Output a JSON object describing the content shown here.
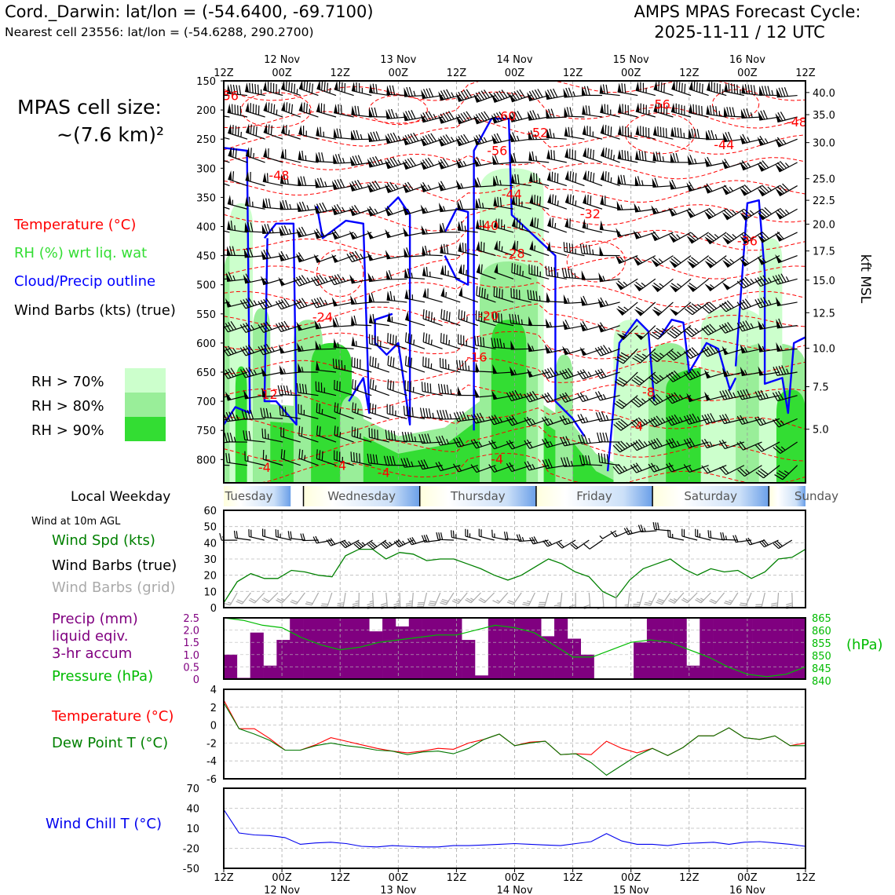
{
  "header": {
    "title_left": "Cord._Darwin: lat/lon = (-54.6400, -69.7100)",
    "subtitle_left": "Nearest cell 23556: lat/lon = (-54.6288, 290.2700)",
    "title_right_1": "AMPS MPAS Forecast Cycle:",
    "title_right_2": "2025-11-11 / 12 UTC"
  },
  "cell_size": {
    "line1": "MPAS cell size:",
    "line2": "~(7.6 km)²"
  },
  "legend": {
    "temperature": "Temperature (°C)",
    "rh": "RH (%) wrt liq. wat",
    "cloud": "Cloud/Precip outline",
    "wind": "Wind Barbs (kts) (true)",
    "rh70": "RH > 70%",
    "rh80": "RH > 80%",
    "rh90": "RH > 90%"
  },
  "colors": {
    "temperature": "#ff0000",
    "rh_text": "#33dd33",
    "cloud": "#0000ff",
    "rh70": "#ccffcc",
    "rh80": "#99ee99",
    "rh90": "#33dd33",
    "precip": "#800080",
    "pressure": "#00bb00",
    "dew": "#007700",
    "windspd": "#008000",
    "grid_barb": "#aaaaaa",
    "chill": "#0000ee"
  },
  "weekday": {
    "label": "Local Weekday",
    "days": [
      "Tuesday",
      "Wednesday",
      "Thursday",
      "Friday",
      "Saturday",
      "Sunday"
    ]
  },
  "panel_labels": {
    "wind10m": "Wind at 10m AGL",
    "windspd": "Wind Spd (kts)",
    "barbs_true": "Wind Barbs (true)",
    "barbs_grid": "Wind Barbs (grid)",
    "precip1": "Precip (mm)",
    "precip2": "liquid eqiv.",
    "precip3": "3-hr accum",
    "pressure": "Pressure (hPa)",
    "hpa_unit": "(hPa)",
    "temp": "Temperature (°C)",
    "dew": "Dew Point T (°C)",
    "chill": "Wind Chill T (°C)",
    "kft": "kft MSL"
  },
  "chart_data": {
    "type": "time-height cross section",
    "time_ticks_top": [
      "12Z",
      "00Z",
      "12Z",
      "00Z",
      "12Z",
      "00Z",
      "12Z",
      "00Z",
      "12Z",
      "00Z",
      "12Z"
    ],
    "date_labels": [
      "12 Nov",
      "13 Nov",
      "14 Nov",
      "15 Nov",
      "16 Nov"
    ],
    "pressure_levels_hpa": [
      "150",
      "200",
      "250",
      "300",
      "350",
      "400",
      "450",
      "500",
      "550",
      "600",
      "650",
      "700",
      "750",
      "800"
    ],
    "kft_ticks": [
      {
        "label": "40.0",
        "p": 170
      },
      {
        "label": "35.0",
        "p": 208
      },
      {
        "label": "30.0",
        "p": 256
      },
      {
        "label": "25.0",
        "p": 318
      },
      {
        "label": "22.5",
        "p": 355
      },
      {
        "label": "20.0",
        "p": 396
      },
      {
        "label": "17.5",
        "p": 442
      },
      {
        "label": "15.0",
        "p": 492
      },
      {
        "label": "12.5",
        "p": 548
      },
      {
        "label": "10.0",
        "p": 609
      },
      {
        "label": "7.5",
        "p": 675
      },
      {
        "label": "5.0",
        "p": 748
      }
    ],
    "temperature_labels": [
      {
        "label": "-56",
        "t": 0.8,
        "p": 175
      },
      {
        "label": "-48",
        "t": 9.5,
        "p": 312
      },
      {
        "label": "-60",
        "t": 48.5,
        "p": 210
      },
      {
        "label": "-56",
        "t": 47,
        "p": 269
      },
      {
        "label": "-52",
        "t": 54,
        "p": 238
      },
      {
        "label": "-44",
        "t": 49.5,
        "p": 344
      },
      {
        "label": "-40",
        "t": 45.5,
        "p": 398
      },
      {
        "label": "-32",
        "t": 63,
        "p": 378
      },
      {
        "label": "-28",
        "t": 50,
        "p": 446
      },
      {
        "label": "-20",
        "t": 45.5,
        "p": 553
      },
      {
        "label": "-16",
        "t": 43.5,
        "p": 624
      },
      {
        "label": "-12",
        "t": 7.5,
        "p": 688
      },
      {
        "label": "-24",
        "t": 17,
        "p": 555
      },
      {
        "label": "-56",
        "t": 75,
        "p": 190
      },
      {
        "label": "-44",
        "t": 86,
        "p": 259
      },
      {
        "label": "-48",
        "t": 98.5,
        "p": 220
      },
      {
        "label": "-36",
        "t": 90,
        "p": 424
      },
      {
        "label": "-8",
        "t": 73,
        "p": 684
      },
      {
        "label": "-4",
        "t": 71,
        "p": 742
      },
      {
        "label": "-4",
        "t": 7,
        "p": 813
      },
      {
        "label": "-4",
        "t": 20,
        "p": 810
      },
      {
        "label": "-4",
        "t": 47,
        "p": 799
      },
      {
        "label": "-4",
        "t": 27.5,
        "p": 822
      }
    ],
    "rh_columns": [
      {
        "t0": 0,
        "t1": 2,
        "top": 450,
        "lvl": 2
      },
      {
        "t0": 1,
        "t1": 5,
        "top": 360,
        "lvl": 1
      },
      {
        "t0": 2,
        "t1": 4,
        "top": 640,
        "lvl": 3
      },
      {
        "t0": 5,
        "t1": 8,
        "top": 540,
        "lvl": 2
      },
      {
        "t0": 12,
        "t1": 17,
        "top": 560,
        "lvl": 2
      },
      {
        "t0": 15,
        "t1": 22,
        "top": 600,
        "lvl": 3
      },
      {
        "t0": 20,
        "t1": 24,
        "top": 690,
        "lvl": 2
      },
      {
        "t0": 44,
        "t1": 55,
        "top": 300,
        "lvl": 1
      },
      {
        "t0": 44,
        "t1": 54,
        "top": 460,
        "lvl": 2
      },
      {
        "t0": 46,
        "t1": 52,
        "top": 560,
        "lvl": 3
      },
      {
        "t0": 57,
        "t1": 60,
        "top": 620,
        "lvl": 2
      },
      {
        "t0": 67,
        "t1": 73,
        "top": 560,
        "lvl": 1
      },
      {
        "t0": 73,
        "t1": 80,
        "top": 600,
        "lvl": 2
      },
      {
        "t0": 76,
        "t1": 96,
        "top": 640,
        "lvl": 3
      },
      {
        "t0": 82,
        "t1": 93,
        "top": 540,
        "lvl": 1
      },
      {
        "t0": 88,
        "t1": 100,
        "top": 600,
        "lvl": 2
      },
      {
        "t0": 92,
        "t1": 96,
        "top": 420,
        "lvl": 1
      },
      {
        "t0": 95,
        "t1": 100,
        "top": 680,
        "lvl": 3
      }
    ],
    "rh_base": [
      {
        "t": 0,
        "p": 730
      },
      {
        "t": 8,
        "p": 705
      },
      {
        "t": 15,
        "p": 710
      },
      {
        "t": 22,
        "p": 720
      },
      {
        "t": 30,
        "p": 760
      },
      {
        "t": 38,
        "p": 745
      },
      {
        "t": 44,
        "p": 700
      },
      {
        "t": 54,
        "p": 700
      },
      {
        "t": 60,
        "p": 740
      },
      {
        "t": 64,
        "p": 790
      },
      {
        "t": 70,
        "p": 820
      },
      {
        "t": 74,
        "p": 760
      },
      {
        "t": 80,
        "p": 720
      },
      {
        "t": 90,
        "p": 690
      },
      {
        "t": 100,
        "p": 700
      }
    ],
    "cloud_outlines": [
      [
        {
          "t": 0,
          "p": 265
        },
        {
          "t": 4,
          "p": 270
        },
        {
          "t": 4.5,
          "p": 720
        },
        {
          "t": 2,
          "p": 710
        },
        {
          "t": 0,
          "p": 740
        }
      ],
      [
        {
          "t": 7,
          "p": 420
        },
        {
          "t": 9,
          "p": 395
        },
        {
          "t": 12,
          "p": 395
        },
        {
          "t": 12.5,
          "p": 740
        },
        {
          "t": 9,
          "p": 700
        },
        {
          "t": 7,
          "p": 700
        },
        {
          "t": 7.5,
          "p": 420
        }
      ],
      [
        {
          "t": 16,
          "p": 365
        },
        {
          "t": 17,
          "p": 420
        },
        {
          "t": 21,
          "p": 390
        },
        {
          "t": 24,
          "p": 395
        },
        {
          "t": 24.5,
          "p": 555
        },
        {
          "t": 25,
          "p": 720
        },
        {
          "t": 24,
          "p": 660
        },
        {
          "t": 21.5,
          "p": 700
        }
      ],
      [
        {
          "t": 28,
          "p": 370
        },
        {
          "t": 30,
          "p": 350
        },
        {
          "t": 32,
          "p": 380
        },
        {
          "t": 32,
          "p": 740
        },
        {
          "t": 30,
          "p": 600
        },
        {
          "t": 28,
          "p": 620
        },
        {
          "t": 26,
          "p": 600
        },
        {
          "t": 26,
          "p": 560
        },
        {
          "t": 29,
          "p": 550
        }
      ],
      [
        {
          "t": 38,
          "p": 410
        },
        {
          "t": 40,
          "p": 370
        },
        {
          "t": 42,
          "p": 375
        },
        {
          "t": 42,
          "p": 500
        },
        {
          "t": 40,
          "p": 490
        },
        {
          "t": 38,
          "p": 450
        }
      ],
      [
        {
          "t": 43,
          "p": 750
        },
        {
          "t": 43,
          "p": 270
        },
        {
          "t": 46,
          "p": 215
        },
        {
          "t": 49,
          "p": 215
        },
        {
          "t": 49.5,
          "p": 380
        },
        {
          "t": 57,
          "p": 450
        },
        {
          "t": 57,
          "p": 700
        },
        {
          "t": 60,
          "p": 730
        },
        {
          "t": 62,
          "p": 760
        }
      ],
      [
        {
          "t": 66,
          "p": 820
        },
        {
          "t": 68,
          "p": 600
        },
        {
          "t": 71,
          "p": 560
        },
        {
          "t": 73,
          "p": 580
        },
        {
          "t": 74,
          "p": 700
        }
      ],
      [
        {
          "t": 75,
          "p": 590
        },
        {
          "t": 77,
          "p": 560
        },
        {
          "t": 79,
          "p": 565
        },
        {
          "t": 80,
          "p": 650
        },
        {
          "t": 83,
          "p": 600
        },
        {
          "t": 85,
          "p": 610
        },
        {
          "t": 87,
          "p": 680
        },
        {
          "t": 88,
          "p": 660
        }
      ],
      [
        {
          "t": 88,
          "p": 640
        },
        {
          "t": 90,
          "p": 360
        },
        {
          "t": 92,
          "p": 355
        },
        {
          "t": 93,
          "p": 480
        },
        {
          "t": 93,
          "p": 670
        },
        {
          "t": 96,
          "p": 660
        },
        {
          "t": 97,
          "p": 720
        },
        {
          "t": 98,
          "p": 600
        },
        {
          "t": 100,
          "p": 590
        }
      ]
    ],
    "wind10m": {
      "ylim": [
        0,
        60
      ],
      "yticks": [
        0,
        10,
        20,
        30,
        40,
        50,
        60
      ],
      "speed_kts": [
        3,
        16,
        21,
        18,
        18,
        23,
        22,
        20,
        19,
        32,
        36,
        36,
        30,
        34,
        33,
        29,
        30,
        30,
        27,
        24,
        20,
        17,
        20,
        25,
        30,
        27,
        22,
        19,
        10,
        6,
        17,
        24,
        27,
        30,
        24,
        20,
        24,
        22,
        23,
        18,
        22,
        30,
        31,
        36
      ]
    },
    "precip_pressure": {
      "precip_yticks": [
        "2.5",
        "2.0",
        "1.5",
        "1.0",
        "0.5",
        "0"
      ],
      "pressure_yticks": [
        "865",
        "860",
        "855",
        "850",
        "845",
        "840"
      ],
      "precip_ylim": [
        0,
        2.5
      ],
      "precip_mm": [
        1.0,
        0.05,
        1.9,
        0.55,
        1.6,
        2.5,
        2.5,
        2.5,
        2.5,
        2.5,
        2.5,
        1.95,
        2.5,
        2.15,
        2.5,
        2.5,
        2.5,
        2.5,
        1.6,
        0.15,
        2.5,
        2.5,
        2.5,
        2.5,
        1.75,
        2.5,
        1.65,
        1.0,
        0,
        0,
        0,
        1.5,
        2.5,
        2.5,
        2.5,
        0.55,
        2.5,
        2.5,
        2.5,
        2.5,
        2.5,
        2.5,
        2.5,
        2.5
      ],
      "pressure_ylim": [
        840,
        865
      ],
      "pressure_hpa": [
        865,
        864,
        862,
        861,
        857,
        854,
        852,
        853,
        855,
        856,
        857,
        858,
        858,
        860,
        862,
        861,
        859,
        854,
        849,
        849,
        852,
        855,
        856,
        855,
        852,
        849,
        845,
        842,
        841,
        842,
        845
      ]
    },
    "temp_dew": {
      "ylim": [
        -6,
        4
      ],
      "yticks": [
        4,
        2,
        0,
        -2,
        -4,
        -6
      ],
      "temperature_c": [
        2.8,
        -0.4,
        -0.4,
        -1.5,
        -2.8,
        -2.8,
        -2.2,
        -1.4,
        -1.8,
        -2.2,
        -2.6,
        -2.9,
        -3.1,
        -2.9,
        -2.6,
        -2.7,
        -2.0,
        -1.6,
        -1.0,
        -2.3,
        -1.9,
        -1.8,
        -3.3,
        -3.2,
        -3.3,
        -1.8,
        -2.6,
        -3.1,
        -2.6,
        -3.4,
        -2.5,
        -1.2,
        -1.2,
        -0.3,
        -1.4,
        -1.6,
        -1.2,
        -2.3,
        -2.0
      ],
      "dewpoint_c": [
        2.5,
        -0.4,
        -1.0,
        -1.7,
        -2.8,
        -2.8,
        -2.3,
        -2.0,
        -2.3,
        -2.5,
        -2.8,
        -2.9,
        -3.3,
        -3.0,
        -2.9,
        -3.2,
        -2.6,
        -1.6,
        -1.0,
        -2.3,
        -2.0,
        -1.8,
        -3.3,
        -3.2,
        -4.2,
        -5.6,
        -4.5,
        -3.4,
        -2.6,
        -3.4,
        -2.5,
        -1.2,
        -1.2,
        -0.3,
        -1.4,
        -1.6,
        -1.2,
        -2.3,
        -2.3
      ]
    },
    "wind_chill": {
      "ylim": [
        -50,
        70
      ],
      "yticks": [
        70,
        40,
        10,
        -20,
        -50
      ],
      "chill_c": [
        38,
        3,
        0,
        -1,
        -4,
        -14,
        -12,
        -11,
        -13,
        -17,
        -18,
        -16,
        -17,
        -18,
        -18,
        -16,
        -16,
        -15,
        -14,
        -13,
        -14,
        -15,
        -16,
        -13,
        -10,
        2,
        -9,
        -14,
        -14,
        -16,
        -13,
        -12,
        -11,
        -14,
        -11,
        -10,
        -12,
        -14,
        -17
      ]
    },
    "bottom_ticks": [
      "12Z",
      "00Z",
      "12Z",
      "00Z",
      "12Z",
      "00Z",
      "12Z",
      "00Z",
      "12Z",
      "00Z",
      "12Z"
    ]
  }
}
